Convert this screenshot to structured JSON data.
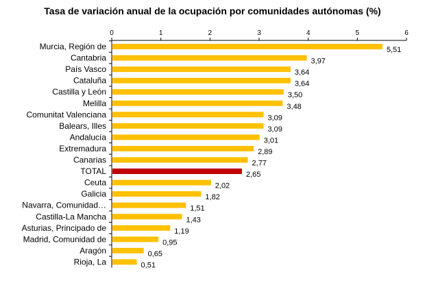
{
  "chart_data": {
    "type": "bar",
    "orientation": "horizontal",
    "title": "Tasa de variación anual de la ocupación por comunidades autónomas (%)",
    "xlim": [
      0,
      6
    ],
    "ticks": [
      "0",
      "1",
      "2",
      "3",
      "4",
      "5",
      "6"
    ],
    "tick_values": [
      0,
      1,
      2,
      3,
      4,
      5,
      6
    ],
    "axis_position": "top",
    "grid": false,
    "colors": {
      "bar": "#FFC000",
      "highlight": "#C00000"
    },
    "highlight_category": "TOTAL",
    "categories": [
      "Murcia, Región de",
      "Cantabria",
      "País Vasco",
      "Cataluña",
      "Castilla y León",
      "Melilla",
      "Comunitat Valenciana",
      "Balears, Illes",
      "Andalucía",
      "Extremadura",
      "Canarias",
      "TOTAL",
      "Ceuta",
      "Galicia",
      "Navarra, Comunidad…",
      "Castilla-La Mancha",
      "Asturias, Principado de",
      "Madrid, Comunidad de",
      "Aragón",
      "Rioja, La"
    ],
    "values": [
      5.51,
      3.97,
      3.64,
      3.64,
      3.5,
      3.48,
      3.09,
      3.09,
      3.01,
      2.89,
      2.77,
      2.65,
      2.02,
      1.82,
      1.51,
      1.43,
      1.19,
      0.95,
      0.65,
      0.51
    ],
    "value_labels": [
      "5,51",
      "3,97",
      "3,64",
      "3,64",
      "3,50",
      "3,48",
      "3,09",
      "3,09",
      "3,01",
      "2,89",
      "2,77",
      "2,65",
      "2,02",
      "1,82",
      "1,51",
      "1,43",
      "1,19",
      "0,95",
      "0,65",
      "0,51"
    ]
  }
}
